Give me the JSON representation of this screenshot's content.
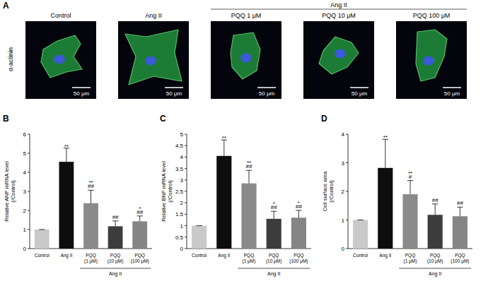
{
  "figure": {
    "panel_letter": "A",
    "stain_label": "α-actinin",
    "treatment_label": "Ang II",
    "images": [
      {
        "label": "Control",
        "scale_bar": "50 μm"
      },
      {
        "label": "Ang II",
        "scale_bar": "50 μm"
      },
      {
        "label": "PQQ 1 μM",
        "scale_bar": "50 μm"
      },
      {
        "label": "PQQ 10 μM",
        "scale_bar": "50 μm"
      },
      {
        "label": "PQQ 100 μM",
        "scale_bar": "50 μm"
      }
    ]
  },
  "chart_data": [
    {
      "panel_letter": "B",
      "type": "bar",
      "y_label": "Relative ANP mRNA level (/Control)",
      "categories": [
        "Control",
        "Ang II",
        "PQQ (1 μM)",
        "PQQ (10 μM)",
        "PQQ (100 μM)"
      ],
      "group_label": "Ang II",
      "values": [
        1,
        4.55,
        2.38,
        1.17,
        1.43
      ],
      "errors": [
        0,
        0.72,
        0.68,
        0.28,
        0.28
      ],
      "annotations": [
        [],
        [
          "**"
        ],
        [
          "**",
          "##"
        ],
        [
          "##"
        ],
        [
          "*",
          "##"
        ]
      ],
      "colors": [
        "#c9c9c9",
        "#0d0d0d",
        "#8a8a8a",
        "#3c3c3c",
        "#858585"
      ],
      "ylim": [
        0,
        6
      ],
      "yticks": [
        0,
        1,
        2,
        3,
        4,
        5,
        6
      ]
    },
    {
      "panel_letter": "C",
      "type": "bar",
      "y_label": "Relative BNP mRNA level (/Control)",
      "categories": [
        "Control",
        "Ang II",
        "PQQ (1 μM)",
        "PQQ (10 μM)",
        "PQQ (100 μM)"
      ],
      "group_label": "Ang II",
      "values": [
        1,
        4.05,
        2.85,
        1.3,
        1.35
      ],
      "errors": [
        0,
        0.7,
        0.57,
        0.33,
        0.32
      ],
      "annotations": [
        [],
        [
          "**"
        ],
        [
          "**",
          "##"
        ],
        [
          "*",
          "##"
        ],
        [
          "*",
          "##"
        ]
      ],
      "colors": [
        "#c9c9c9",
        "#0d0d0d",
        "#8a8a8a",
        "#3c3c3c",
        "#858585"
      ],
      "ylim": [
        0,
        5
      ],
      "yticks": [
        0,
        0.5,
        1,
        1.5,
        2,
        2.5,
        3,
        3.5,
        4,
        4.5,
        5
      ]
    },
    {
      "panel_letter": "D",
      "type": "bar",
      "y_label": "Cell surface area (/Control)",
      "categories": [
        "Control",
        "Ang II",
        "PQQ (1 μM)",
        "PQQ (10 μM)",
        "PQQ (100 μM)"
      ],
      "group_label": "Ang II",
      "values": [
        1,
        2.82,
        1.9,
        1.18,
        1.13
      ],
      "errors": [
        0,
        1.0,
        0.48,
        0.38,
        0.32
      ],
      "annotations": [
        [],
        [
          "**"
        ],
        [
          "**",
          "#"
        ],
        [
          "##"
        ],
        [
          "##"
        ]
      ],
      "colors": [
        "#c9c9c9",
        "#0d0d0d",
        "#8a8a8a",
        "#3c3c3c",
        "#858585"
      ],
      "ylim": [
        0,
        4
      ],
      "yticks": [
        0,
        1,
        2,
        3,
        4
      ]
    }
  ]
}
